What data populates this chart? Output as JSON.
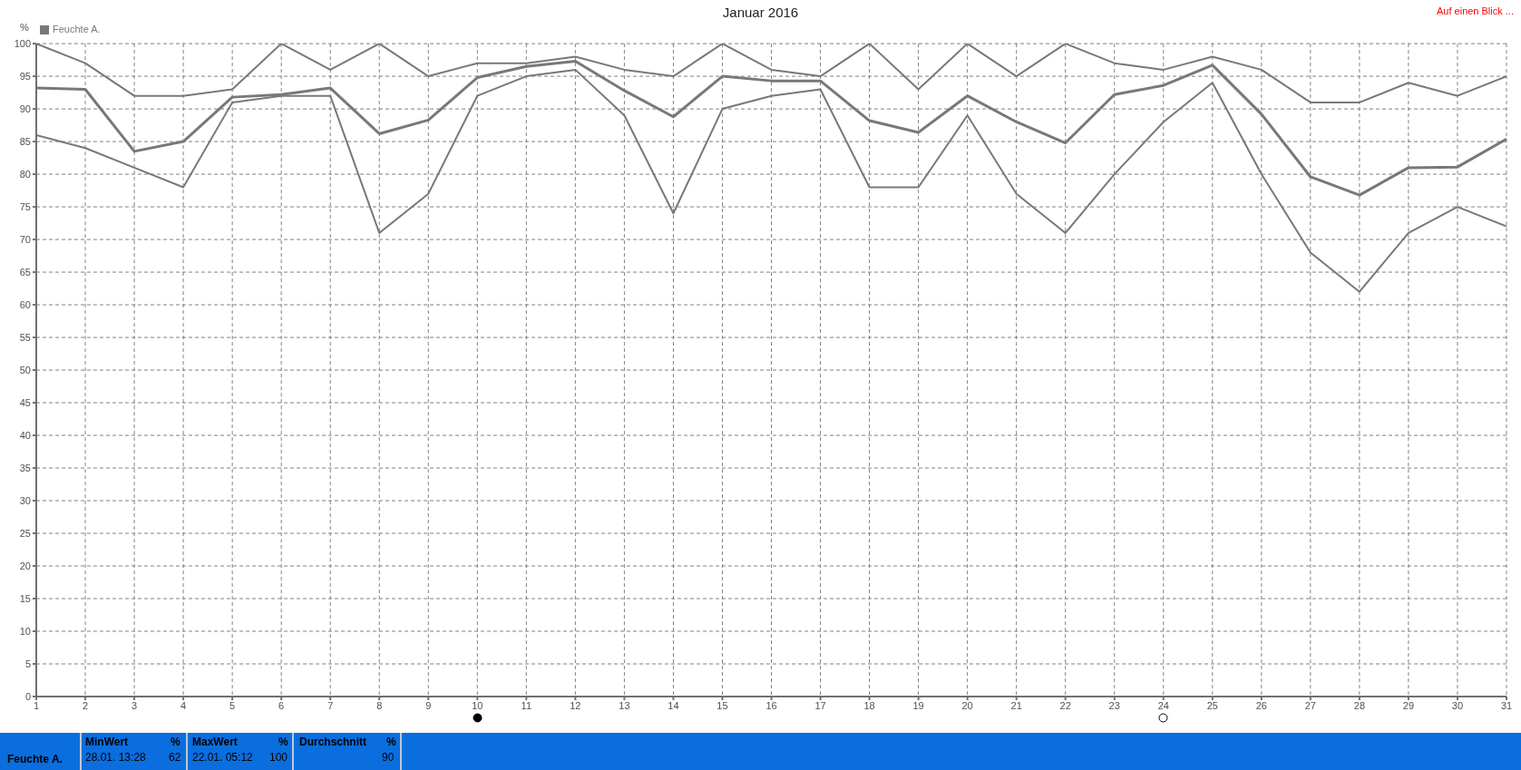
{
  "chart_data": {
    "type": "line",
    "title": "Januar 2016",
    "ylabel": "%",
    "x": [
      1,
      2,
      3,
      4,
      5,
      6,
      7,
      8,
      9,
      10,
      11,
      12,
      13,
      14,
      15,
      16,
      17,
      18,
      19,
      20,
      21,
      22,
      23,
      24,
      25,
      26,
      27,
      28,
      29,
      30,
      31
    ],
    "xlim": [
      1,
      31
    ],
    "xticks": [
      1,
      2,
      3,
      4,
      5,
      6,
      7,
      8,
      9,
      10,
      11,
      12,
      13,
      14,
      15,
      16,
      17,
      18,
      19,
      20,
      21,
      22,
      23,
      24,
      25,
      26,
      27,
      28,
      29,
      30,
      31
    ],
    "ylim": [
      0,
      100
    ],
    "yticks": [
      0,
      5,
      10,
      15,
      20,
      25,
      30,
      35,
      40,
      45,
      50,
      55,
      60,
      65,
      70,
      75,
      80,
      85,
      90,
      95,
      100
    ],
    "series": [
      {
        "name": "Feuchte A.",
        "color": "#787878",
        "values": [
          93.2,
          93,
          83.5,
          85,
          91.8,
          92.2,
          93.2,
          86.2,
          88.3,
          94.8,
          96.5,
          97.3,
          92.8,
          88.8,
          95,
          94.3,
          94.3,
          88.2,
          86.4,
          92,
          88,
          84.8,
          92.2,
          93.6,
          96.7,
          89.2,
          79.6,
          76.8,
          81,
          81.1,
          85.4
        ]
      },
      {
        "color": "#787878",
        "values": [
          100,
          97,
          92,
          92,
          93,
          100,
          96,
          100,
          95,
          97,
          97,
          98,
          96,
          95,
          100,
          96,
          95,
          100,
          93,
          100,
          95,
          100,
          97,
          96,
          98,
          96,
          91,
          91,
          94,
          92,
          95
        ]
      },
      {
        "color": "#787878",
        "values": [
          86,
          84,
          81,
          78,
          91,
          92,
          92,
          71,
          77,
          92,
          95,
          96,
          89,
          74,
          90,
          92,
          93,
          78,
          78,
          89,
          77,
          71,
          80,
          88,
          94,
          80,
          68,
          62,
          71,
          75,
          72
        ]
      }
    ],
    "grid": true,
    "legend": "top left",
    "marker": "none",
    "line_style": "solid",
    "annotations": [
      "Auf einen Blick ...",
      "Feuchte A.",
      "MinWert",
      "%",
      "28.01.  13:28",
      "62",
      "MaxWert",
      "%",
      "22.01.  05:12",
      "100",
      "Durchschnitt",
      "%",
      "90"
    ]
  }
}
